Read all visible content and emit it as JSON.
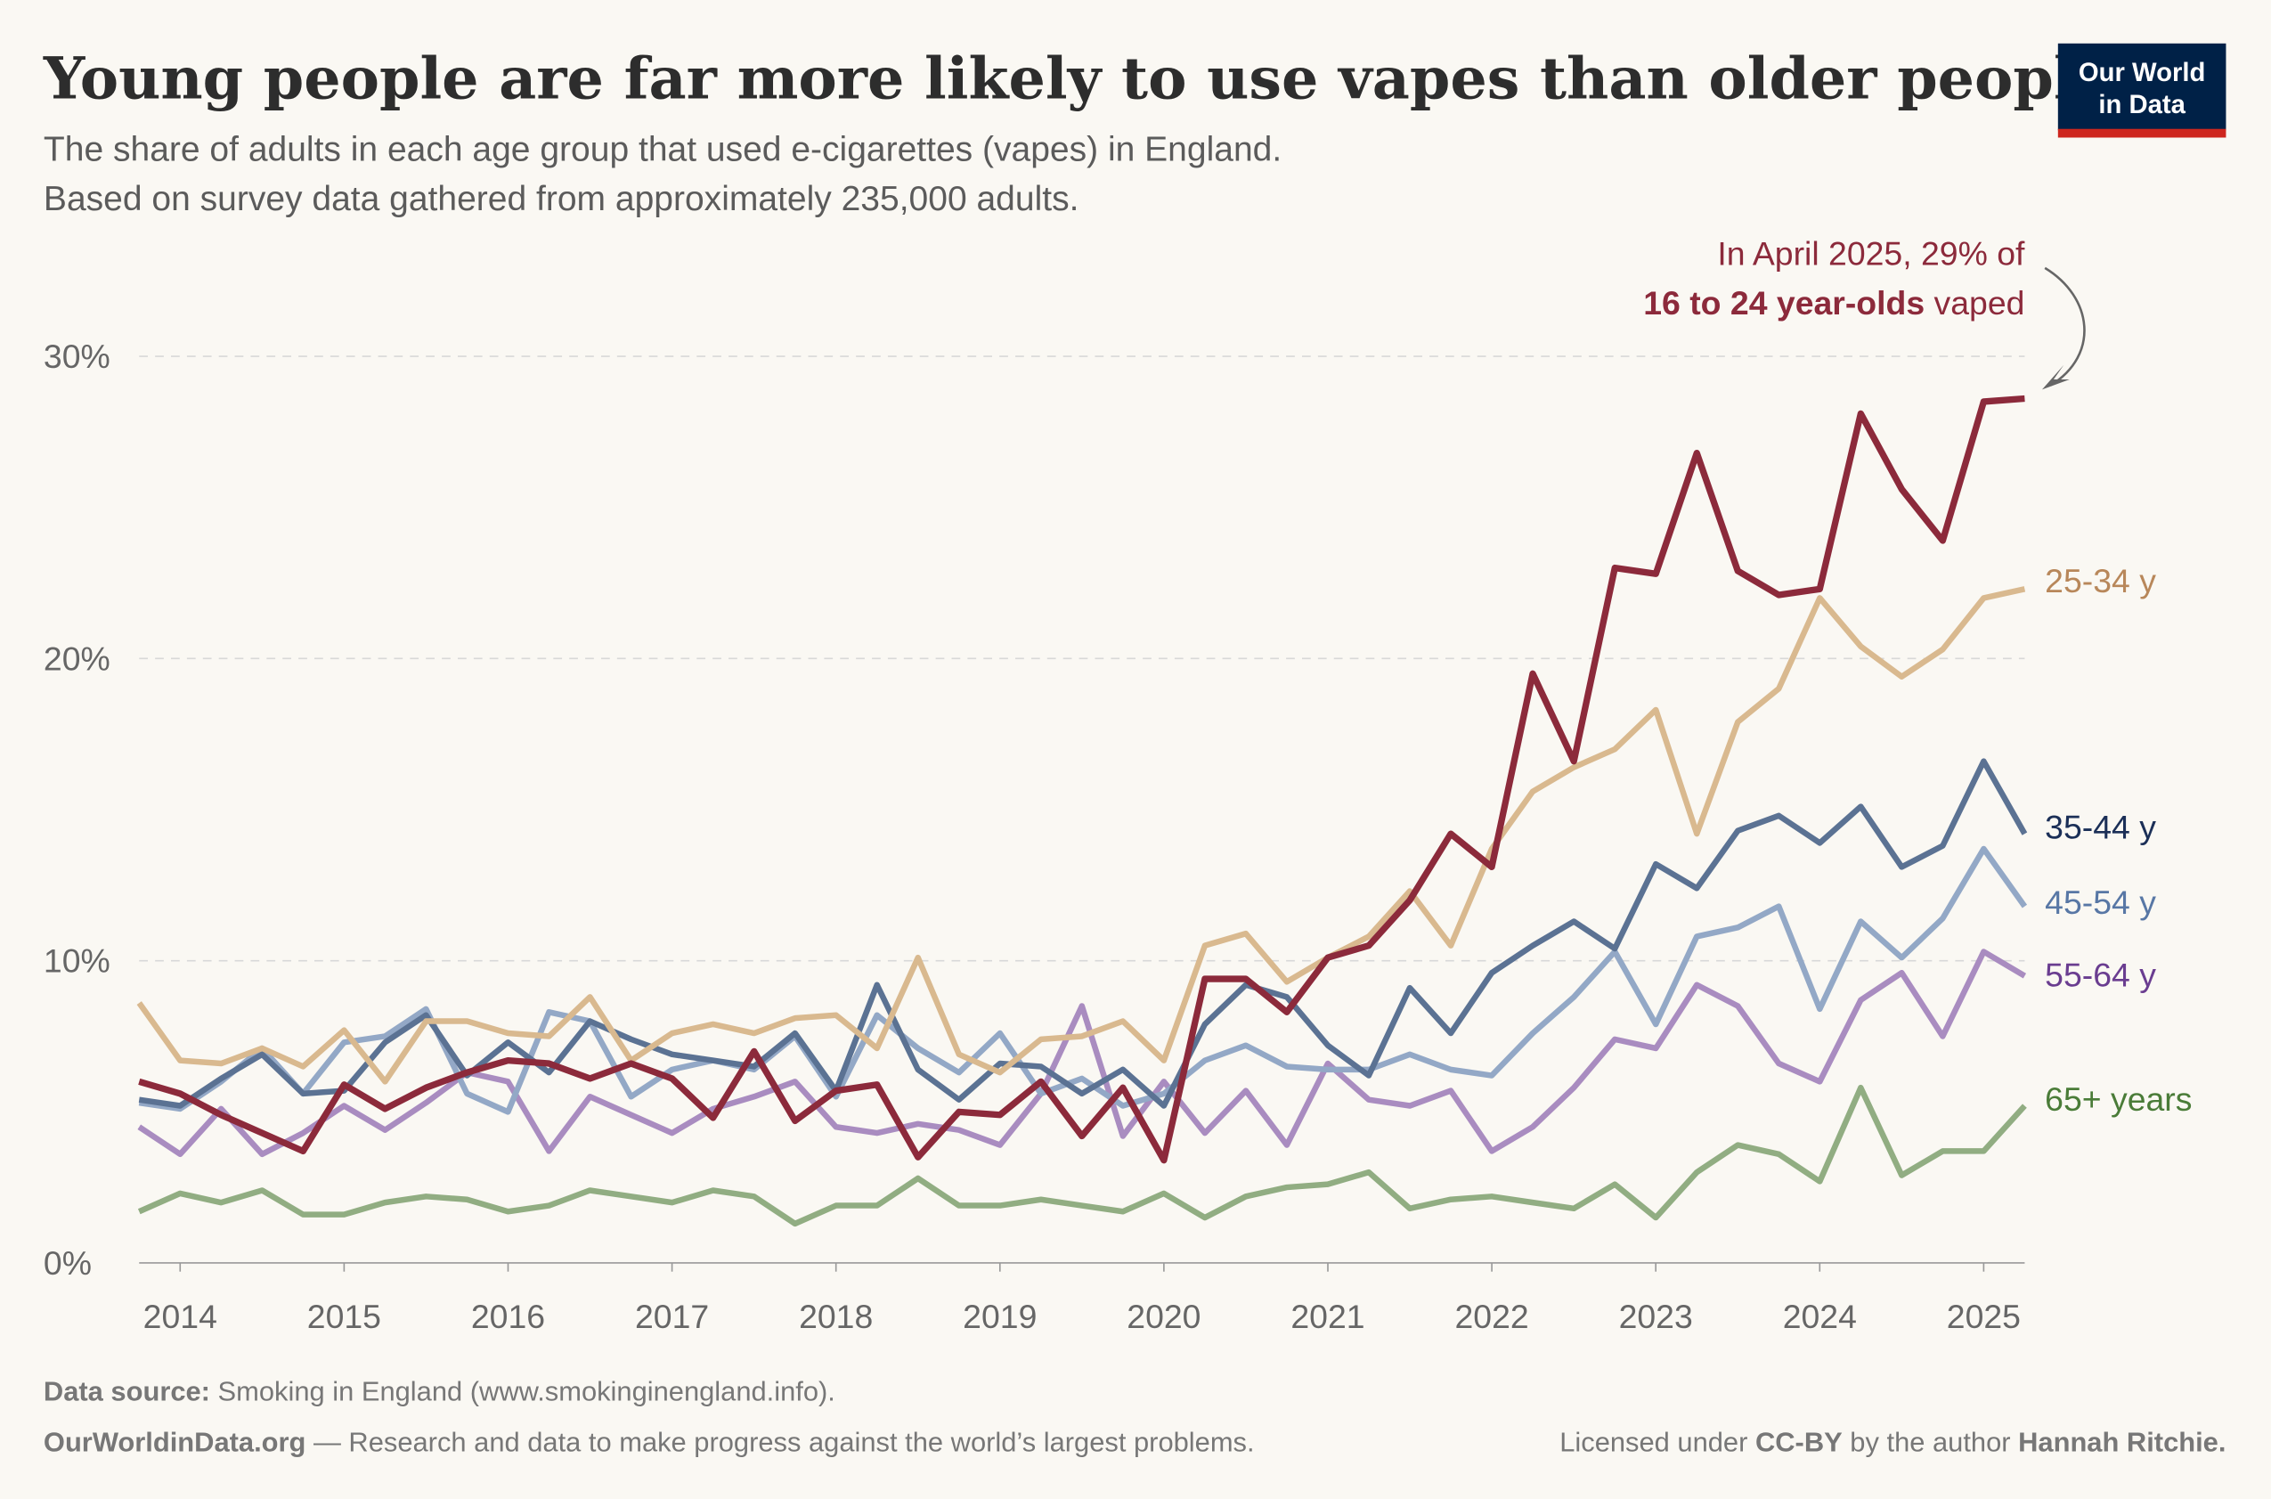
{
  "header": {
    "title": "Young people are far more likely to use vapes than older people",
    "subtitle_line1": "The share of adults in each age group that used e-cigarettes (vapes) in England.",
    "subtitle_line2": "Based on survey data gathered from approximately 235,000 adults.",
    "logo_line1": "Our World",
    "logo_line2": "in Data"
  },
  "annotation": {
    "line1": "In April 2025, 29% of",
    "line2_bold": "16 to 24 year-olds",
    "line2_rest": " vaped"
  },
  "footer": {
    "source_label": "Data source:",
    "source_text": " Smoking in England (www.smokinginengland.info).",
    "owid_bold": "OurWorldinData.org",
    "owid_text": " — Research and data to make progress against the world’s largest problems.",
    "license_text": "Licensed under ",
    "license_bold": "CC-BY",
    "license_mid": " by the author ",
    "author": "Hannah Ritchie."
  },
  "chart_data": {
    "type": "line",
    "xlim": [
      2013.75,
      2025.25
    ],
    "ylim": [
      0,
      30
    ],
    "x_ticks": [
      "2014",
      "2015",
      "2016",
      "2017",
      "2018",
      "2019",
      "2020",
      "2021",
      "2022",
      "2023",
      "2024",
      "2025"
    ],
    "y_ticks": [
      "0%",
      "10%",
      "20%",
      "30%"
    ],
    "grid": "horizontal dashed",
    "x_start": 2013.75,
    "x_step": 0.25,
    "series": [
      {
        "name": "16-24 y",
        "label": "",
        "color": "#8c2a3b",
        "values": [
          6.0,
          5.6,
          4.9,
          4.3,
          3.7,
          5.9,
          5.1,
          5.8,
          6.3,
          6.7,
          6.6,
          6.1,
          6.6,
          6.1,
          4.8,
          7.0,
          4.7,
          5.7,
          5.9,
          3.5,
          5.0,
          4.9,
          6.0,
          4.2,
          5.8,
          3.4,
          9.4,
          9.4,
          8.3,
          10.1,
          10.5,
          12.0,
          14.2,
          13.1,
          19.5,
          16.6,
          23.0,
          22.8,
          26.8,
          22.9,
          22.1,
          22.3,
          28.1,
          25.6,
          23.9,
          28.5,
          28.6
        ]
      },
      {
        "name": "25-34 y",
        "label": "25-34 y",
        "color": "#d9b98f",
        "labelColor": "#b8875a",
        "values": [
          8.6,
          6.7,
          6.6,
          7.1,
          6.5,
          7.7,
          6.0,
          8.0,
          8.0,
          7.6,
          7.5,
          8.8,
          6.7,
          7.6,
          7.9,
          7.6,
          8.1,
          8.2,
          7.1,
          10.1,
          6.9,
          6.3,
          7.4,
          7.5,
          8.0,
          6.7,
          10.5,
          10.9,
          9.3,
          10.1,
          10.8,
          12.3,
          10.5,
          13.7,
          15.6,
          16.4,
          17.0,
          18.3,
          14.2,
          17.9,
          19.0,
          22.0,
          20.4,
          19.4,
          20.3,
          22.0,
          22.3
        ]
      },
      {
        "name": "35-44 y",
        "label": "35-44 y",
        "color": "#5b7293",
        "labelColor": "#1b2f57",
        "values": [
          5.4,
          5.2,
          6.1,
          6.9,
          5.6,
          5.7,
          7.3,
          8.2,
          6.2,
          7.3,
          6.3,
          8.0,
          7.4,
          6.9,
          6.7,
          6.5,
          7.6,
          5.7,
          9.2,
          6.4,
          5.4,
          6.6,
          6.5,
          5.6,
          6.4,
          5.2,
          7.9,
          9.2,
          8.8,
          7.2,
          6.2,
          9.1,
          7.6,
          9.6,
          10.5,
          11.3,
          10.4,
          13.2,
          12.4,
          14.3,
          14.8,
          13.9,
          15.1,
          13.1,
          13.8,
          16.6,
          14.2
        ]
      },
      {
        "name": "45-54 y",
        "label": "45-54 y",
        "color": "#93a8c6",
        "labelColor": "#5877a5",
        "values": [
          5.3,
          5.1,
          6.0,
          7.1,
          5.6,
          7.3,
          7.5,
          8.4,
          5.6,
          5.0,
          8.3,
          8.0,
          5.5,
          6.4,
          6.7,
          6.4,
          7.5,
          5.5,
          8.2,
          7.1,
          6.3,
          7.6,
          5.6,
          6.1,
          5.2,
          5.6,
          6.7,
          7.2,
          6.5,
          6.4,
          6.4,
          6.9,
          6.4,
          6.2,
          7.6,
          8.8,
          10.3,
          7.9,
          10.8,
          11.1,
          11.8,
          8.4,
          11.3,
          10.1,
          11.4,
          13.7,
          11.8
        ]
      },
      {
        "name": "55-64 y",
        "label": "55-64 y",
        "color": "#a98cc0",
        "labelColor": "#6a3d90",
        "values": [
          4.5,
          3.6,
          5.1,
          3.6,
          4.3,
          5.2,
          4.4,
          5.3,
          6.3,
          6.0,
          3.7,
          5.5,
          4.9,
          4.3,
          5.1,
          5.5,
          6.0,
          4.5,
          4.3,
          4.6,
          4.4,
          3.9,
          5.6,
          8.5,
          4.2,
          6.0,
          4.3,
          5.7,
          3.9,
          6.6,
          5.4,
          5.2,
          5.7,
          3.7,
          4.5,
          5.8,
          7.4,
          7.1,
          9.2,
          8.5,
          6.6,
          6.0,
          8.7,
          9.6,
          7.5,
          10.3,
          9.5
        ]
      },
      {
        "name": "65+ years",
        "label": "65+ years",
        "color": "#91ad82",
        "labelColor": "#4a7c38",
        "values": [
          1.7,
          2.3,
          2.0,
          2.4,
          1.6,
          1.6,
          2.0,
          2.2,
          2.1,
          1.7,
          1.9,
          2.4,
          2.2,
          2.0,
          2.4,
          2.2,
          1.3,
          1.9,
          1.9,
          2.8,
          1.9,
          1.9,
          2.1,
          1.9,
          1.7,
          2.3,
          1.5,
          2.2,
          2.5,
          2.6,
          3.0,
          1.8,
          2.1,
          2.2,
          2.0,
          1.8,
          2.6,
          1.5,
          3.0,
          3.9,
          3.6,
          2.7,
          5.8,
          2.9,
          3.7,
          3.7,
          5.2
        ]
      }
    ]
  }
}
